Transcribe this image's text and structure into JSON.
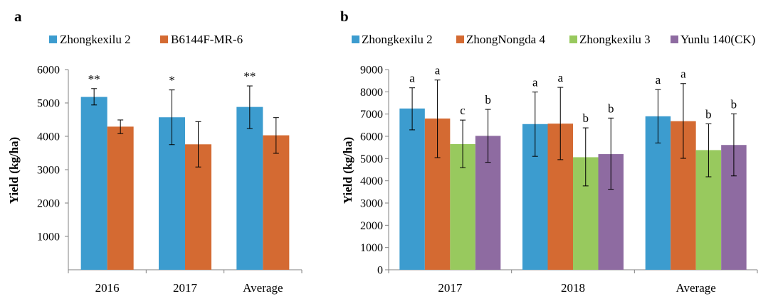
{
  "chart_data": [
    {
      "panel_label": "a",
      "type": "bar",
      "categories": [
        "2016",
        "2017",
        "Average"
      ],
      "ylabel": "Yield (kg/ha)",
      "ylim": [
        0,
        6000
      ],
      "yticks": [
        1000,
        2000,
        3000,
        4000,
        5000,
        6000
      ],
      "grid": false,
      "legend_position": "top",
      "series": [
        {
          "name": "Zhongkexilu 2",
          "color": "#3c9ccf",
          "values": [
            5180,
            4570,
            4880
          ],
          "error": [
            [
              5430,
              4940
            ],
            [
              5390,
              3750
            ],
            [
              5510,
              4230
            ]
          ],
          "labels": [
            "**",
            "*",
            "**"
          ]
        },
        {
          "name": "B6144F-MR-6",
          "color": "#d46a32",
          "values": [
            4290,
            3760,
            4030
          ],
          "error": [
            [
              4490,
              4080
            ],
            [
              4440,
              3080
            ],
            [
              4560,
              3490
            ]
          ],
          "labels": [
            "",
            "",
            ""
          ]
        }
      ]
    },
    {
      "panel_label": "b",
      "type": "bar",
      "categories": [
        "2017",
        "2018",
        "Average"
      ],
      "ylabel": "Yield (kg/ha)",
      "ylim": [
        0,
        9000
      ],
      "yticks": [
        0,
        1000,
        2000,
        3000,
        4000,
        5000,
        6000,
        7000,
        8000,
        9000
      ],
      "grid": false,
      "legend_position": "top",
      "series": [
        {
          "name": "Zhongkexilu 2",
          "color": "#3c9ccf",
          "values": [
            7250,
            6550,
            6900
          ],
          "error": [
            [
              8180,
              6290
            ],
            [
              7990,
              5100
            ],
            [
              8100,
              5700
            ]
          ],
          "labels": [
            "a",
            "a",
            "a"
          ]
        },
        {
          "name": "ZhongNongda 4",
          "color": "#d46a32",
          "values": [
            6800,
            6570,
            6680
          ],
          "error": [
            [
              8530,
              5040
            ],
            [
              8200,
              4950
            ],
            [
              8370,
              5010
            ]
          ],
          "labels": [
            "a",
            "a",
            "a"
          ]
        },
        {
          "name": "Zhongkexilu 3",
          "color": "#98c95e",
          "values": [
            5650,
            5060,
            5380
          ],
          "error": [
            [
              6730,
              4590
            ],
            [
              6380,
              3770
            ],
            [
              6560,
              4180
            ]
          ],
          "labels": [
            "c",
            "b",
            "b"
          ]
        },
        {
          "name": "Yunlu 140(CK)",
          "color": "#8e6ba1",
          "values": [
            6020,
            5200,
            5610
          ],
          "error": [
            [
              7210,
              4830
            ],
            [
              6820,
              3620
            ],
            [
              7010,
              4220
            ]
          ],
          "labels": [
            "b",
            "b",
            "b"
          ]
        }
      ]
    }
  ]
}
